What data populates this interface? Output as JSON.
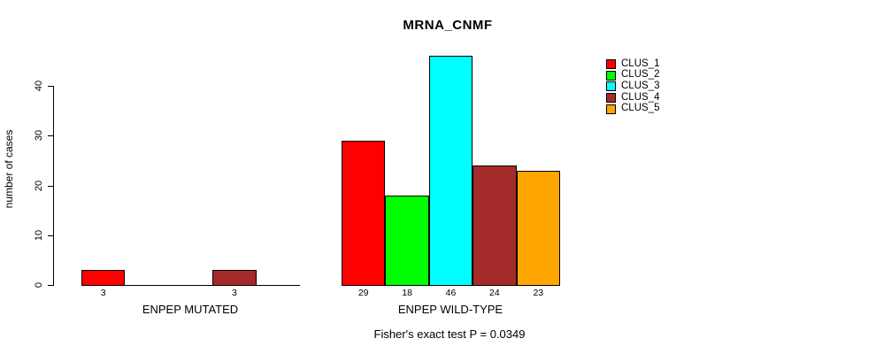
{
  "chart_data": {
    "type": "bar",
    "title": "MRNA_CNMF",
    "ylabel": "number of cases",
    "annotation": "Fisher's exact test P = 0.0349",
    "ylim": [
      0,
      46
    ],
    "yticks": [
      0,
      10,
      20,
      30,
      40
    ],
    "grid": false,
    "legend_position": "right",
    "series": [
      {
        "name": "CLUS_1",
        "color": "#FF0000"
      },
      {
        "name": "CLUS_2",
        "color": "#00FF00"
      },
      {
        "name": "CLUS_3",
        "color": "#00FFFF"
      },
      {
        "name": "CLUS_4",
        "color": "#A52A2A"
      },
      {
        "name": "CLUS_5",
        "color": "#FFA500"
      }
    ],
    "groups": [
      {
        "label": "ENPEP MUTATED",
        "values": [
          3,
          0,
          0,
          3,
          0
        ],
        "visible_bar_labels": [
          "3",
          "3"
        ]
      },
      {
        "label": "ENPEP WILD-TYPE",
        "values": [
          29,
          18,
          46,
          24,
          23
        ],
        "visible_bar_labels": [
          "29",
          "18",
          "46",
          "24",
          "23"
        ]
      }
    ]
  }
}
